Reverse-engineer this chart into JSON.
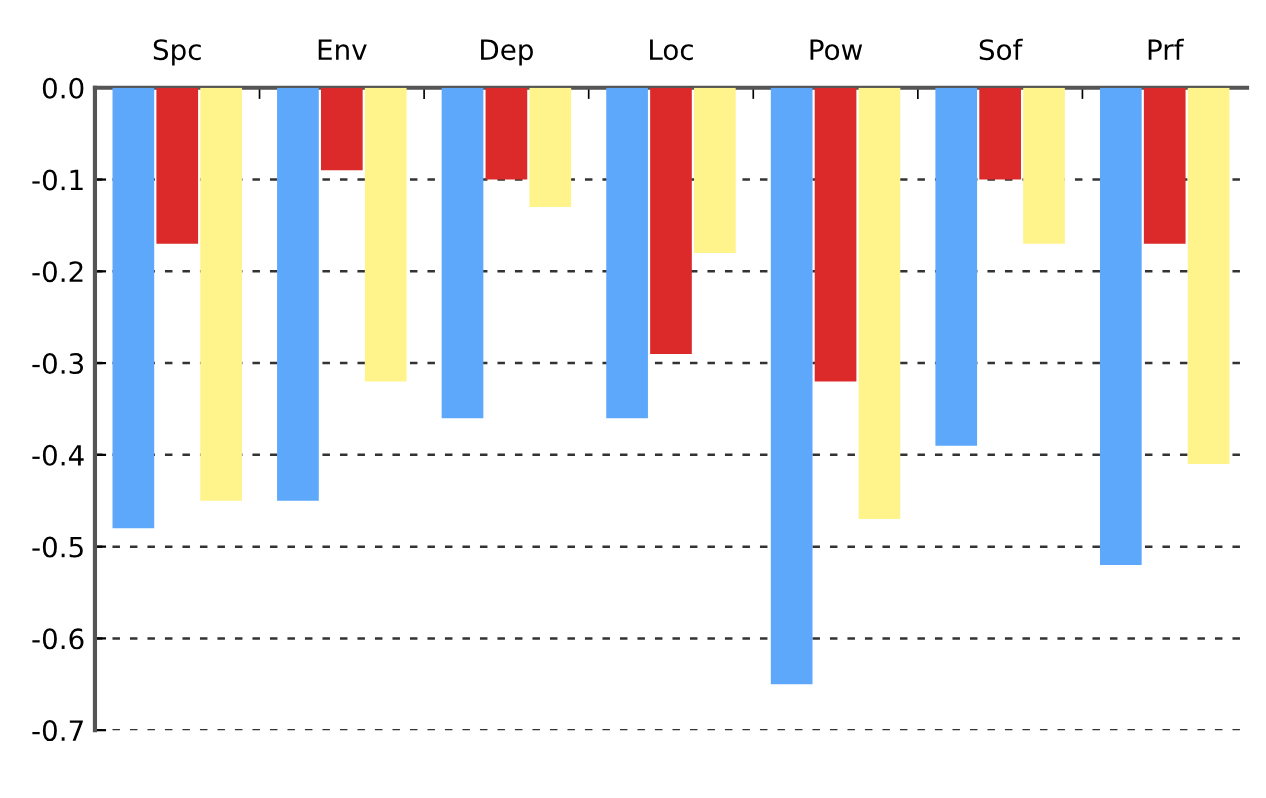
{
  "chart_data": {
    "type": "bar",
    "categories": [
      "Spc",
      "Env",
      "Dep",
      "Loc",
      "Pow",
      "Sof",
      "Prf"
    ],
    "series": [
      {
        "color": "#5ea8fc",
        "values": [
          -0.48,
          -0.45,
          -0.36,
          -0.36,
          -0.65,
          -0.39,
          -0.52
        ]
      },
      {
        "color": "#dc2a2a",
        "values": [
          -0.17,
          -0.09,
          -0.1,
          -0.29,
          -0.32,
          -0.1,
          -0.17
        ]
      },
      {
        "color": "#fff38c",
        "values": [
          -0.45,
          -0.32,
          -0.13,
          -0.18,
          -0.47,
          -0.17,
          -0.41
        ]
      }
    ],
    "ylim": [
      -0.7,
      0.0
    ],
    "yticks": [
      {
        "value": 0,
        "label": "0.0"
      },
      -0.1,
      -0.2,
      -0.3,
      -0.4,
      -0.5,
      -0.6,
      -0.7
    ],
    "grid": "y"
  }
}
